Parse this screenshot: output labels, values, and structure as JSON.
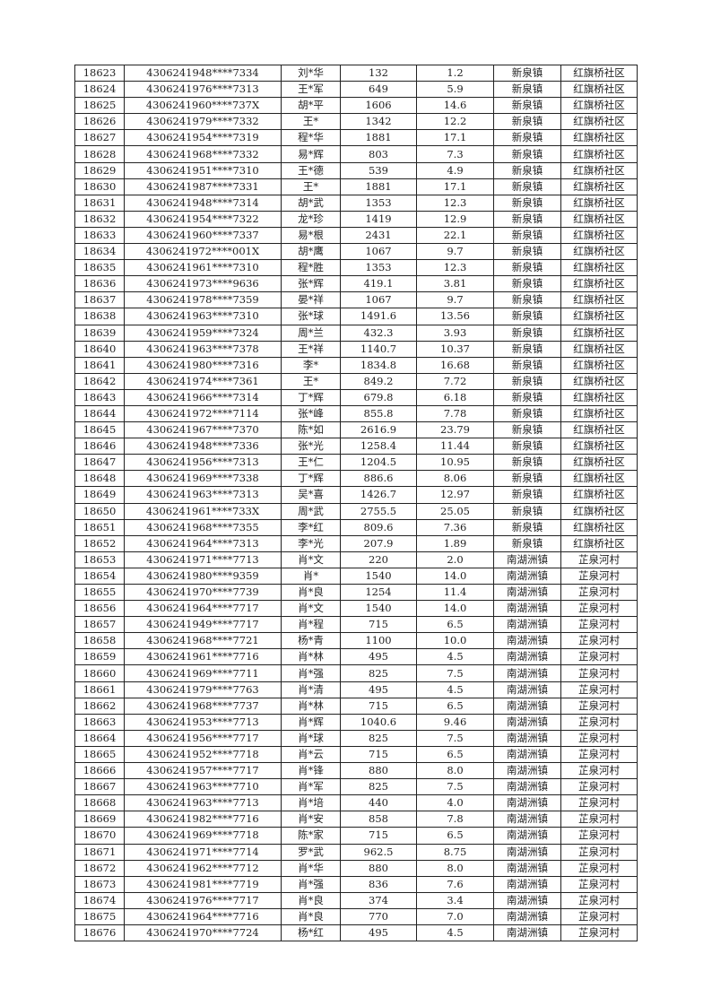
{
  "table": {
    "rows": [
      [
        "18623",
        "4306241948****7334",
        "刘*华",
        "132",
        "1.2",
        "新泉镇",
        "红旗桥社区"
      ],
      [
        "18624",
        "4306241976****7313",
        "王*军",
        "649",
        "5.9",
        "新泉镇",
        "红旗桥社区"
      ],
      [
        "18625",
        "4306241960****737X",
        "胡*平",
        "1606",
        "14.6",
        "新泉镇",
        "红旗桥社区"
      ],
      [
        "18626",
        "4306241979****7332",
        "王*",
        "1342",
        "12.2",
        "新泉镇",
        "红旗桥社区"
      ],
      [
        "18627",
        "4306241954****7319",
        "程*华",
        "1881",
        "17.1",
        "新泉镇",
        "红旗桥社区"
      ],
      [
        "18628",
        "4306241968****7332",
        "易*辉",
        "803",
        "7.3",
        "新泉镇",
        "红旗桥社区"
      ],
      [
        "18629",
        "4306241951****7310",
        "王*德",
        "539",
        "4.9",
        "新泉镇",
        "红旗桥社区"
      ],
      [
        "18630",
        "4306241987****7331",
        "王*",
        "1881",
        "17.1",
        "新泉镇",
        "红旗桥社区"
      ],
      [
        "18631",
        "4306241948****7314",
        "胡*武",
        "1353",
        "12.3",
        "新泉镇",
        "红旗桥社区"
      ],
      [
        "18632",
        "4306241954****7322",
        "龙*珍",
        "1419",
        "12.9",
        "新泉镇",
        "红旗桥社区"
      ],
      [
        "18633",
        "4306241960****7337",
        "易*根",
        "2431",
        "22.1",
        "新泉镇",
        "红旗桥社区"
      ],
      [
        "18634",
        "4306241972****001X",
        "胡*鹰",
        "1067",
        "9.7",
        "新泉镇",
        "红旗桥社区"
      ],
      [
        "18635",
        "4306241961****7310",
        "程*胜",
        "1353",
        "12.3",
        "新泉镇",
        "红旗桥社区"
      ],
      [
        "18636",
        "4306241973****9636",
        "张*辉",
        "419.1",
        "3.81",
        "新泉镇",
        "红旗桥社区"
      ],
      [
        "18637",
        "4306241978****7359",
        "晏*祥",
        "1067",
        "9.7",
        "新泉镇",
        "红旗桥社区"
      ],
      [
        "18638",
        "4306241963****7310",
        "张*球",
        "1491.6",
        "13.56",
        "新泉镇",
        "红旗桥社区"
      ],
      [
        "18639",
        "4306241959****7324",
        "周*兰",
        "432.3",
        "3.93",
        "新泉镇",
        "红旗桥社区"
      ],
      [
        "18640",
        "4306241963****7378",
        "王*祥",
        "1140.7",
        "10.37",
        "新泉镇",
        "红旗桥社区"
      ],
      [
        "18641",
        "4306241980****7316",
        "李*",
        "1834.8",
        "16.68",
        "新泉镇",
        "红旗桥社区"
      ],
      [
        "18642",
        "4306241974****7361",
        "王*",
        "849.2",
        "7.72",
        "新泉镇",
        "红旗桥社区"
      ],
      [
        "18643",
        "4306241966****7314",
        "丁*辉",
        "679.8",
        "6.18",
        "新泉镇",
        "红旗桥社区"
      ],
      [
        "18644",
        "4306241972****7114",
        "张*峰",
        "855.8",
        "7.78",
        "新泉镇",
        "红旗桥社区"
      ],
      [
        "18645",
        "4306241967****7370",
        "陈*如",
        "2616.9",
        "23.79",
        "新泉镇",
        "红旗桥社区"
      ],
      [
        "18646",
        "4306241948****7336",
        "张*光",
        "1258.4",
        "11.44",
        "新泉镇",
        "红旗桥社区"
      ],
      [
        "18647",
        "4306241956****7313",
        "王*仁",
        "1204.5",
        "10.95",
        "新泉镇",
        "红旗桥社区"
      ],
      [
        "18648",
        "4306241969****7338",
        "丁*辉",
        "886.6",
        "8.06",
        "新泉镇",
        "红旗桥社区"
      ],
      [
        "18649",
        "4306241963****7313",
        "吴*喜",
        "1426.7",
        "12.97",
        "新泉镇",
        "红旗桥社区"
      ],
      [
        "18650",
        "4306241961****733X",
        "周*武",
        "2755.5",
        "25.05",
        "新泉镇",
        "红旗桥社区"
      ],
      [
        "18651",
        "4306241968****7355",
        "李*红",
        "809.6",
        "7.36",
        "新泉镇",
        "红旗桥社区"
      ],
      [
        "18652",
        "4306241964****7313",
        "李*光",
        "207.9",
        "1.89",
        "新泉镇",
        "红旗桥社区"
      ],
      [
        "18653",
        "4306241971****7713",
        "肖*文",
        "220",
        "2.0",
        "南湖洲镇",
        "芷泉河村"
      ],
      [
        "18654",
        "4306241980****9359",
        "肖*",
        "1540",
        "14.0",
        "南湖洲镇",
        "芷泉河村"
      ],
      [
        "18655",
        "4306241970****7739",
        "肖*良",
        "1254",
        "11.4",
        "南湖洲镇",
        "芷泉河村"
      ],
      [
        "18656",
        "4306241964****7717",
        "肖*文",
        "1540",
        "14.0",
        "南湖洲镇",
        "芷泉河村"
      ],
      [
        "18657",
        "4306241949****7717",
        "肖*程",
        "715",
        "6.5",
        "南湖洲镇",
        "芷泉河村"
      ],
      [
        "18658",
        "4306241968****7721",
        "杨*青",
        "1100",
        "10.0",
        "南湖洲镇",
        "芷泉河村"
      ],
      [
        "18659",
        "4306241961****7716",
        "肖*林",
        "495",
        "4.5",
        "南湖洲镇",
        "芷泉河村"
      ],
      [
        "18660",
        "4306241969****7711",
        "肖*强",
        "825",
        "7.5",
        "南湖洲镇",
        "芷泉河村"
      ],
      [
        "18661",
        "4306241979****7763",
        "肖*清",
        "495",
        "4.5",
        "南湖洲镇",
        "芷泉河村"
      ],
      [
        "18662",
        "4306241968****7737",
        "肖*林",
        "715",
        "6.5",
        "南湖洲镇",
        "芷泉河村"
      ],
      [
        "18663",
        "4306241953****7713",
        "肖*辉",
        "1040.6",
        "9.46",
        "南湖洲镇",
        "芷泉河村"
      ],
      [
        "18664",
        "4306241956****7717",
        "肖*球",
        "825",
        "7.5",
        "南湖洲镇",
        "芷泉河村"
      ],
      [
        "18665",
        "4306241952****7718",
        "肖*云",
        "715",
        "6.5",
        "南湖洲镇",
        "芷泉河村"
      ],
      [
        "18666",
        "4306241957****7717",
        "肖*锋",
        "880",
        "8.0",
        "南湖洲镇",
        "芷泉河村"
      ],
      [
        "18667",
        "4306241963****7710",
        "肖*军",
        "825",
        "7.5",
        "南湖洲镇",
        "芷泉河村"
      ],
      [
        "18668",
        "4306241963****7713",
        "肖*培",
        "440",
        "4.0",
        "南湖洲镇",
        "芷泉河村"
      ],
      [
        "18669",
        "4306241982****7716",
        "肖*安",
        "858",
        "7.8",
        "南湖洲镇",
        "芷泉河村"
      ],
      [
        "18670",
        "4306241969****7718",
        "陈*家",
        "715",
        "6.5",
        "南湖洲镇",
        "芷泉河村"
      ],
      [
        "18671",
        "4306241971****7714",
        "罗*武",
        "962.5",
        "8.75",
        "南湖洲镇",
        "芷泉河村"
      ],
      [
        "18672",
        "4306241962****7712",
        "肖*华",
        "880",
        "8.0",
        "南湖洲镇",
        "芷泉河村"
      ],
      [
        "18673",
        "4306241981****7719",
        "肖*强",
        "836",
        "7.6",
        "南湖洲镇",
        "芷泉河村"
      ],
      [
        "18674",
        "4306241976****7717",
        "肖*良",
        "374",
        "3.4",
        "南湖洲镇",
        "芷泉河村"
      ],
      [
        "18675",
        "4306241964****7716",
        "肖*良",
        "770",
        "7.0",
        "南湖洲镇",
        "芷泉河村"
      ],
      [
        "18676",
        "4306241970****7724",
        "杨*红",
        "495",
        "4.5",
        "南湖洲镇",
        "芷泉河村"
      ]
    ]
  }
}
